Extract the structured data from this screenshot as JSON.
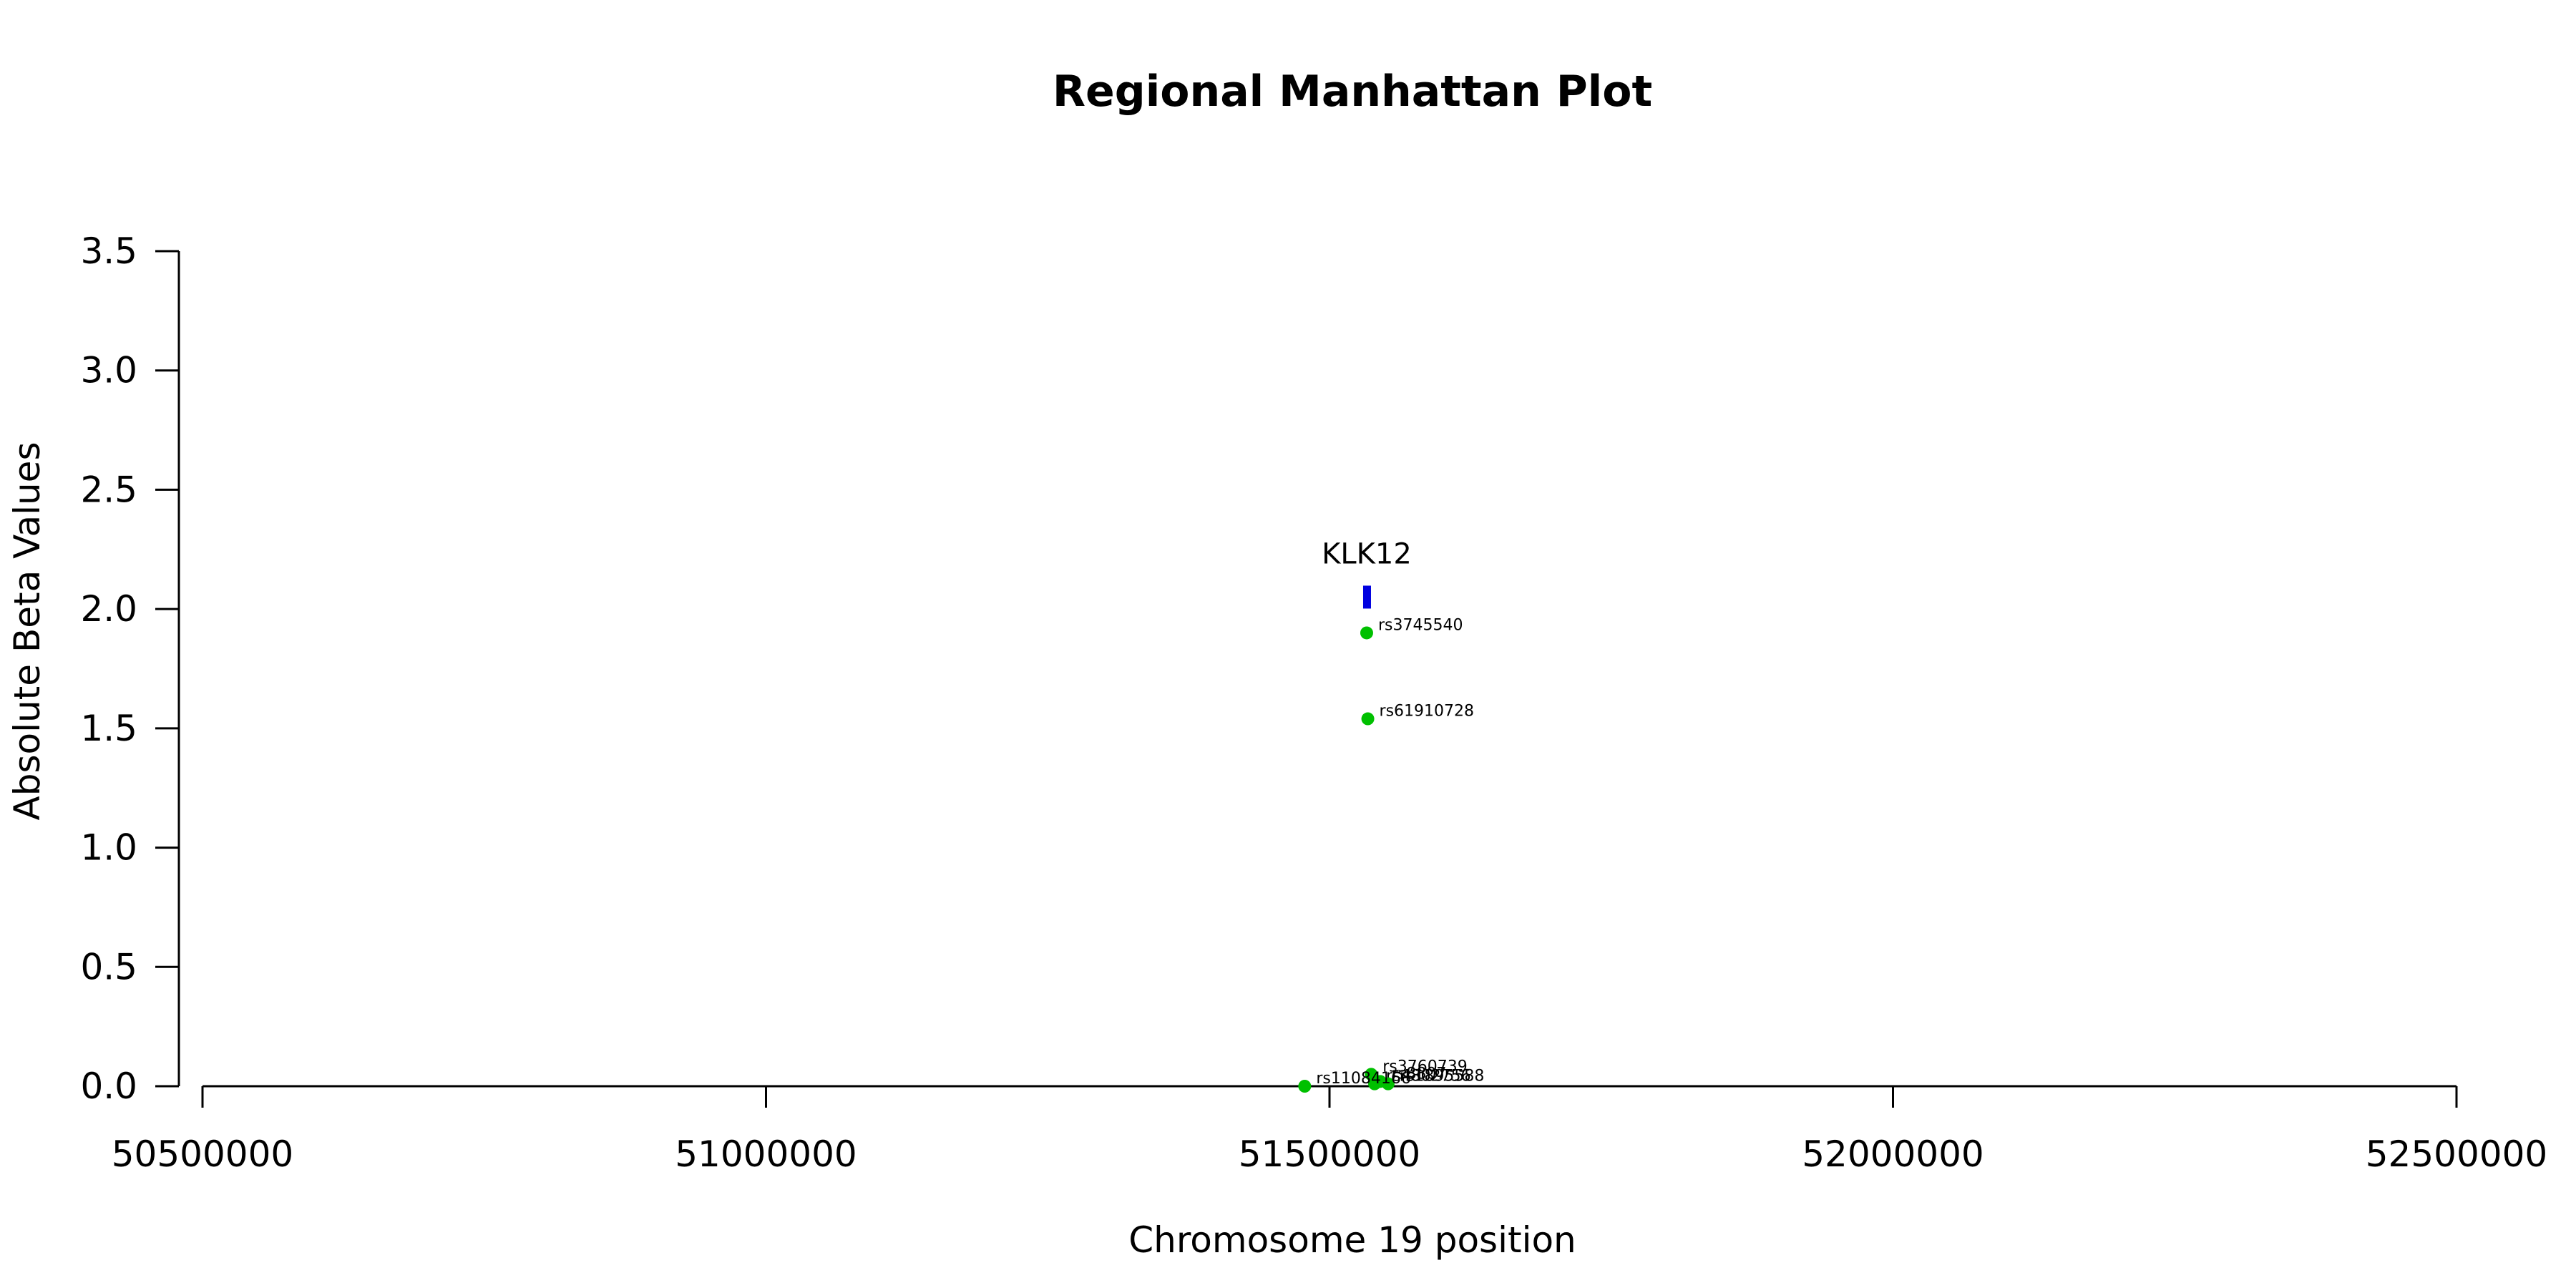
{
  "chart_data": {
    "type": "scatter",
    "title": "Regional Manhattan Plot",
    "xlabel": "Chromosome 19 position",
    "ylabel": "Absolute Beta Values",
    "xlim": [
      50500000,
      52500000
    ],
    "ylim": [
      0,
      3.5
    ],
    "x_ticks": [
      50500000,
      51000000,
      51500000,
      52000000,
      52500000
    ],
    "x_tick_labels": [
      "50500000",
      "51000000",
      "51500000",
      "52000000",
      "52500000"
    ],
    "y_ticks": [
      0,
      0.5,
      1,
      1.5,
      2,
      2.5,
      3,
      3.5
    ],
    "y_tick_labels": [
      "0.0",
      "0.5",
      "1.0",
      "1.5",
      "2.0",
      "2.5",
      "3.0",
      "3.5"
    ],
    "grid": false,
    "point_color": "#00c000",
    "gene_color": "#0000e0",
    "series": [
      {
        "points": [
          {
            "x": 51533000,
            "y": 1.9,
            "label": "rs3745540"
          },
          {
            "x": 51534000,
            "y": 1.54,
            "label": "rs61910728"
          },
          {
            "x": 51537000,
            "y": 0.05,
            "label": "rs3760739"
          },
          {
            "x": 51545000,
            "y": 0.02,
            "label": "rs8807"
          },
          {
            "x": 51540000,
            "y": 0.01,
            "label": "rs4802756"
          },
          {
            "x": 51552000,
            "y": 0.01,
            "label": "rs1895588"
          },
          {
            "x": 51478000,
            "y": 0.0,
            "label": "rs11084166"
          }
        ]
      }
    ],
    "genes": [
      {
        "name": "KLK12",
        "x": 51533000,
        "y": 2.05
      }
    ]
  }
}
